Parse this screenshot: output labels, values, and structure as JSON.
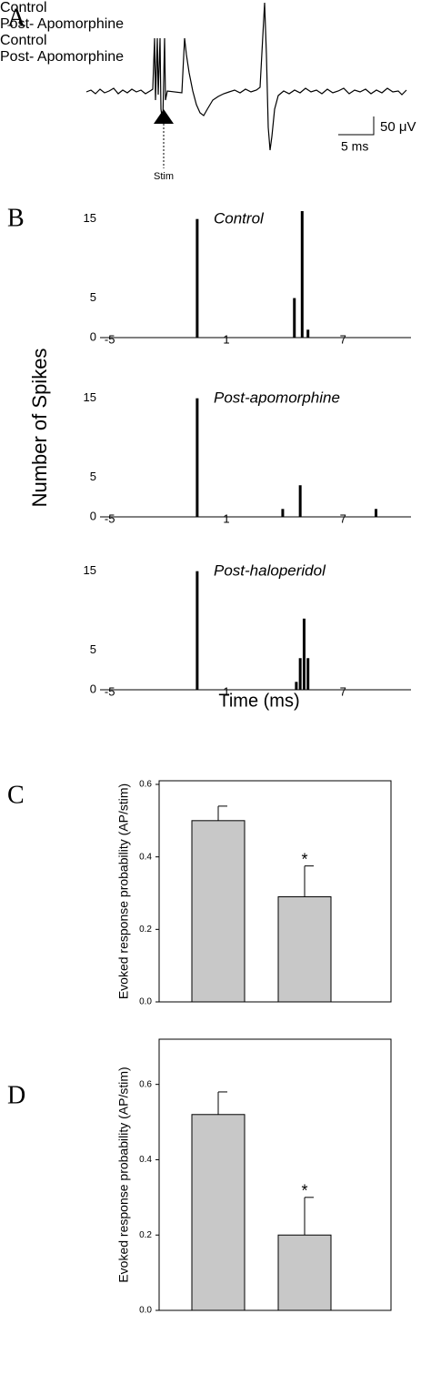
{
  "panel_labels": [
    "A",
    "B",
    "C",
    "D"
  ],
  "trace": {
    "scale_y": "50 μV",
    "scale_x": "5 ms",
    "stim_label": "Stim"
  },
  "histogram_axes": {
    "y_label": "Number of Spikes",
    "x_label": "Time (ms)"
  },
  "chart_data": [
    {
      "type": "spikes",
      "title": "Control",
      "color": "#000000",
      "x": [
        -0.5,
        4.5,
        4.9,
        5.2
      ],
      "values": [
        15,
        5,
        16,
        1
      ],
      "xlim": [
        -5.5,
        10.5
      ],
      "xticks": [
        -5,
        1,
        7
      ],
      "ylim": [
        0,
        16
      ],
      "yticks": [
        0,
        5,
        15
      ]
    },
    {
      "type": "spikes",
      "title": "Post-apomorphine",
      "color": "#000000",
      "x": [
        -0.5,
        3.9,
        4.8,
        8.7
      ],
      "values": [
        15,
        1,
        4,
        1
      ],
      "xlim": [
        -5.5,
        10.5
      ],
      "xticks": [
        -5,
        1,
        7
      ],
      "ylim": [
        0,
        16
      ],
      "yticks": [
        0,
        5,
        15
      ]
    },
    {
      "type": "spikes",
      "title": "Post-haloperidol",
      "color": "#000000",
      "x": [
        -0.5,
        4.6,
        4.8,
        5.0,
        5.2
      ],
      "values": [
        15,
        1,
        4,
        9,
        4
      ],
      "xlim": [
        -5.5,
        10.5
      ],
      "xticks": [
        -5,
        1,
        7
      ],
      "ylim": [
        0,
        16
      ],
      "yticks": [
        0,
        5,
        15
      ]
    },
    {
      "type": "bar",
      "y_label": "Evoked response probability (AP/stim)",
      "color": "#c8c8c8",
      "categories": [
        "Control",
        "Post-\nApomorphine"
      ],
      "values": [
        0.5,
        0.29
      ],
      "errors": [
        0.04,
        0.085
      ],
      "annotations": [
        {
          "text": "*",
          "category": "Post-\nApomorphine"
        }
      ],
      "ylim": [
        0,
        0.61
      ],
      "yticks": [
        {
          "value": 0,
          "label": "0.0"
        },
        0.2,
        0.4,
        0.6
      ]
    },
    {
      "type": "bar",
      "y_label": "Evoked response probability (AP/stim)",
      "color": "#c8c8c8",
      "categories": [
        "Control",
        "Post-\nApomorphine"
      ],
      "values": [
        0.52,
        0.2
      ],
      "errors": [
        0.06,
        0.1
      ],
      "annotations": [
        {
          "text": "*",
          "category": "Post-\nApomorphine"
        }
      ],
      "ylim": [
        0,
        0.72
      ],
      "yticks": [
        {
          "value": 0,
          "label": "0.0"
        },
        0.2,
        0.4,
        0.6
      ]
    }
  ]
}
